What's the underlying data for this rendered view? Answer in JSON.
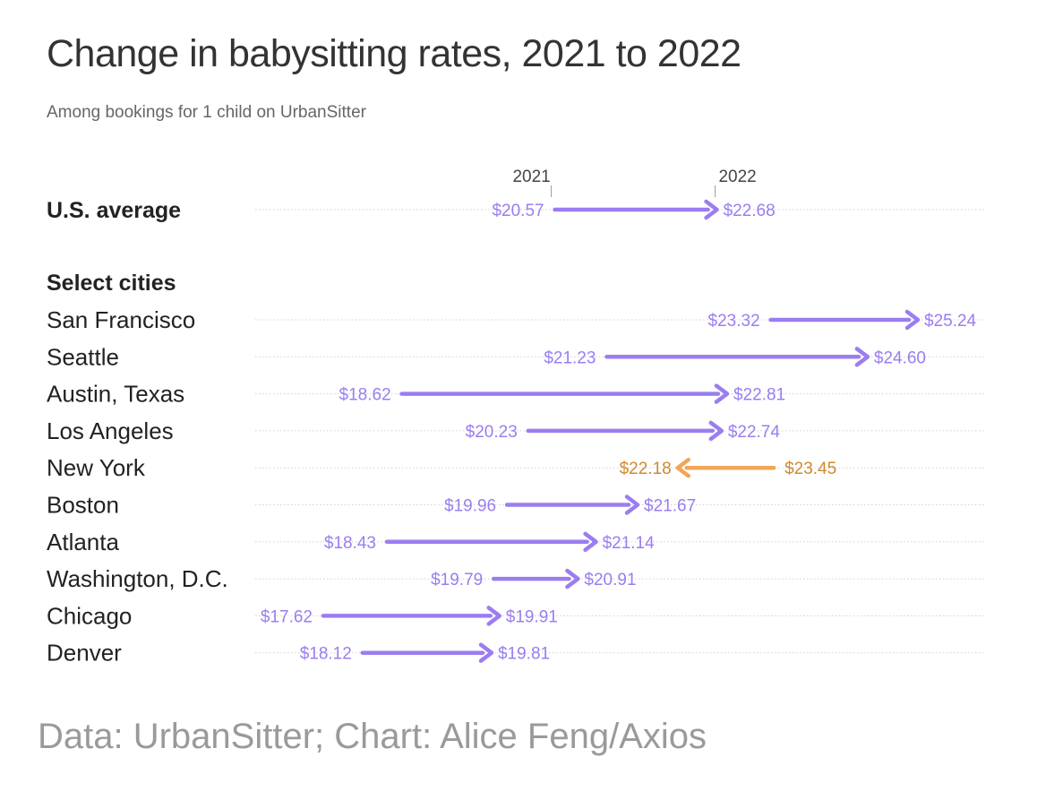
{
  "header": {
    "title": "Change in babysitting rates, 2021 to 2022",
    "subtitle": "Among bookings for 1 child on UrbanSitter"
  },
  "footer": {
    "source": "Data: UrbanSitter; Chart: Alice Feng/Axios"
  },
  "colors": {
    "increase": "#9b7df0",
    "decrease": "#f0a65a",
    "decrease_text": "#d08a30",
    "dotted_line": "#d0d0d0"
  },
  "chart_data": {
    "type": "arrow-dumbbell",
    "title": "Change in babysitting rates, 2021 to 2022",
    "subtitle": "Among bookings for 1 child on UrbanSitter",
    "column_labels": [
      "2021",
      "2022"
    ],
    "section_label": "Select cities",
    "x_unit": "USD per hour",
    "xlim": [
      17.62,
      25.24
    ],
    "average": {
      "name": "U.S. average",
      "start": 20.57,
      "end": 22.68,
      "start_label": "$20.57",
      "end_label": "$22.68"
    },
    "cities": [
      {
        "name": "San Francisco",
        "start": 23.32,
        "end": 25.24,
        "start_label": "$23.32",
        "end_label": "$25.24"
      },
      {
        "name": "Seattle",
        "start": 21.23,
        "end": 24.6,
        "start_label": "$21.23",
        "end_label": "$24.60"
      },
      {
        "name": "Austin, Texas",
        "start": 18.62,
        "end": 22.81,
        "start_label": "$18.62",
        "end_label": "$22.81"
      },
      {
        "name": "Los Angeles",
        "start": 20.23,
        "end": 22.74,
        "start_label": "$20.23",
        "end_label": "$22.74"
      },
      {
        "name": "New York",
        "start": 23.45,
        "end": 22.18,
        "start_label": "$23.45",
        "end_label": "$22.18"
      },
      {
        "name": "Boston",
        "start": 19.96,
        "end": 21.67,
        "start_label": "$19.96",
        "end_label": "$21.67"
      },
      {
        "name": "Atlanta",
        "start": 18.43,
        "end": 21.14,
        "start_label": "$18.43",
        "end_label": "$21.14"
      },
      {
        "name": "Washington, D.C.",
        "start": 19.79,
        "end": 20.91,
        "start_label": "$19.79",
        "end_label": "$20.91"
      },
      {
        "name": "Chicago",
        "start": 17.62,
        "end": 19.91,
        "start_label": "$17.62",
        "end_label": "$19.91"
      },
      {
        "name": "Denver",
        "start": 18.12,
        "end": 19.81,
        "start_label": "$18.12",
        "end_label": "$19.81"
      }
    ]
  }
}
